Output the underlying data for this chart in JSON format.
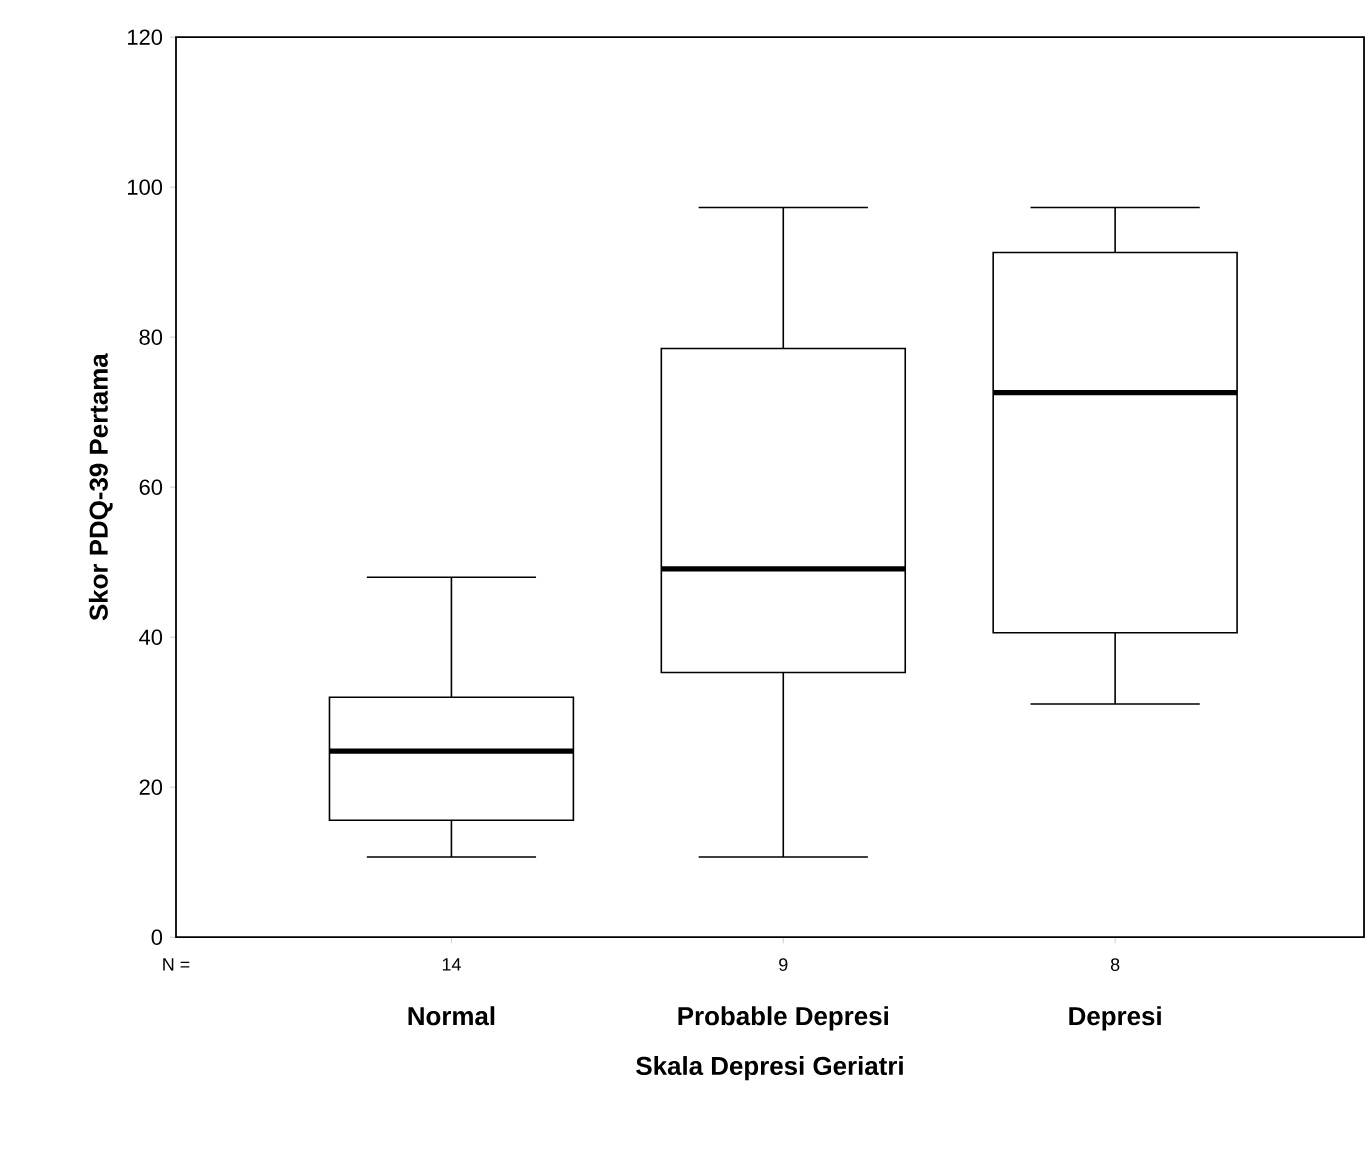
{
  "chart_data": {
    "type": "box",
    "xlabel": "Skala Depresi Geriatri",
    "ylabel": "Skor PDQ-39 Pertama",
    "categories": [
      "Normal",
      "Probable Depresi",
      "Depresi"
    ],
    "boxes": [
      {
        "low": 10.7,
        "q1": 15.6,
        "median": 24.8,
        "q3": 32,
        "high": 48
      },
      {
        "low": 10.7,
        "q1": 35.3,
        "median": 49.1,
        "q3": 78.5,
        "high": 97.3
      },
      {
        "low": 31.1,
        "q1": 40.6,
        "median": 72.6,
        "q3": 91.3,
        "high": 97.3
      }
    ],
    "ylim": [
      0,
      120
    ],
    "yticks": [
      0,
      20,
      40,
      60,
      80,
      100,
      120
    ],
    "annotations": [
      "N =",
      "14",
      "9",
      "8"
    ]
  }
}
